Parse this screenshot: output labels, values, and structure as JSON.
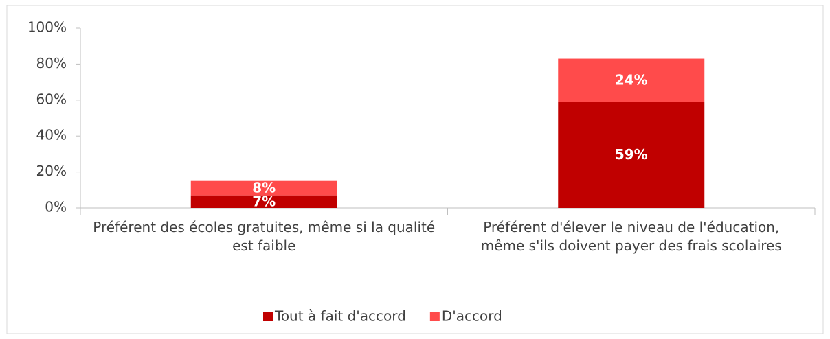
{
  "chart_data": {
    "type": "stacked_bar",
    "categories": [
      "Préférent des écoles gratuites, même si la qualité est faible",
      "Préférent d'élever le niveau de l'éducation, même s'ils doivent payer des frais scolaires"
    ],
    "series": [
      {
        "name": "Tout à fait d'accord",
        "color": "#c00000",
        "values": [
          7,
          59
        ],
        "value_labels": [
          "7%",
          "59%"
        ]
      },
      {
        "name": "D'accord",
        "color": "#ff4b4b",
        "values": [
          8,
          24
        ],
        "value_labels": [
          "8%",
          "24%"
        ]
      }
    ],
    "ylim": [
      0,
      100
    ],
    "yticks": [
      {
        "value": 0,
        "label": "0%"
      },
      {
        "value": 20,
        "label": "20%"
      },
      {
        "value": 40,
        "label": "40%"
      },
      {
        "value": 60,
        "label": "60%"
      },
      {
        "value": 80,
        "label": "80%"
      },
      {
        "value": 100,
        "label": "100%"
      }
    ],
    "legend": "bottom"
  }
}
